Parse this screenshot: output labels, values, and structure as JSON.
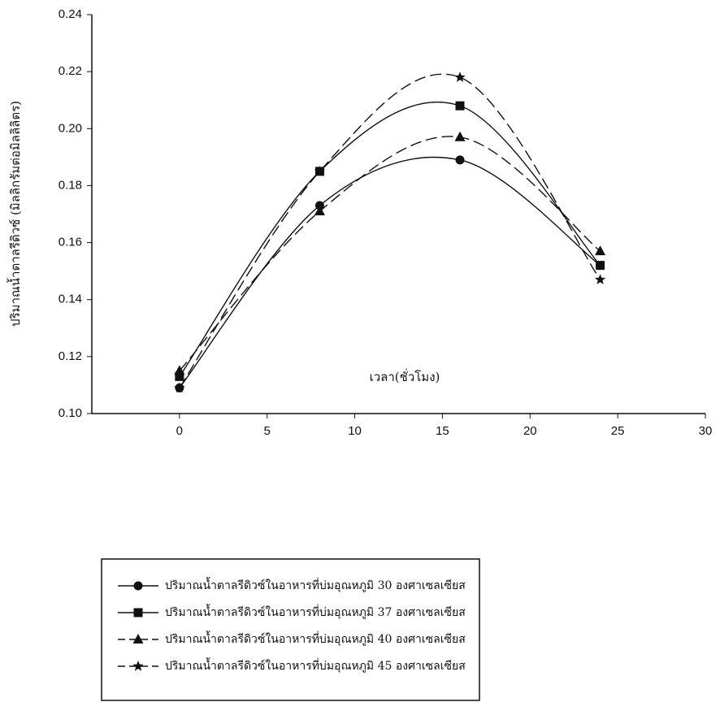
{
  "chart_data": {
    "type": "line",
    "y_label": "ปริมาณน้ำตาลรีดิวซ์ (มิลลิกรัมต่อมิลลิลิตร)",
    "x_label": "เวลา(ชั่วโมง)",
    "x": [
      0,
      8,
      16,
      24
    ],
    "xlim": [
      -5,
      30
    ],
    "xticks": [
      0,
      5,
      10,
      15,
      20,
      25,
      30
    ],
    "ylim": [
      0.1,
      0.24
    ],
    "yticks": [
      {
        "value": 0.1,
        "label": "0.10"
      },
      {
        "value": 0.12,
        "label": "0.12"
      },
      {
        "value": 0.14,
        "label": "0.14"
      },
      {
        "value": 0.16,
        "label": "0.16"
      },
      {
        "value": 0.18,
        "label": "0.18"
      },
      {
        "value": 0.2,
        "label": "0.20"
      },
      {
        "value": 0.22,
        "label": "0.22"
      },
      {
        "value": 0.24,
        "label": "0.24"
      }
    ],
    "series": [
      {
        "name": "ปริมาณน้ำตาลรีดิวซ์ในอาหารที่บ่มอุณหภูมิ 30 องศาเซลเซียส",
        "color": "#111111",
        "marker": "circle",
        "line_style": "solid",
        "values": [
          0.109,
          0.173,
          0.189,
          0.152
        ]
      },
      {
        "name": "ปริมาณน้ำตาลรีดิวซ์ในอาหารที่บ่มอุณหภูมิ 37 องศาเซลเซียส",
        "color": "#111111",
        "marker": "square",
        "line_style": "solid",
        "values": [
          0.113,
          0.185,
          0.208,
          0.152
        ]
      },
      {
        "name": "ปริมาณน้ำตาลรีดิวซ์ในอาหารที่บ่มอุณหภูมิ 40 องศาเซลเซียส",
        "color": "#111111",
        "marker": "triangle",
        "line_style": "dashed",
        "values": [
          0.115,
          0.171,
          0.197,
          0.157
        ]
      },
      {
        "name": "ปริมาณน้ำตาลรีดิวซ์ในอาหารที่บ่มอุณหภูมิ 45 องศาเซลเซียส",
        "color": "#111111",
        "marker": "star",
        "line_style": "dashed",
        "values": [
          0.109,
          0.185,
          0.218,
          0.147
        ]
      }
    ]
  }
}
